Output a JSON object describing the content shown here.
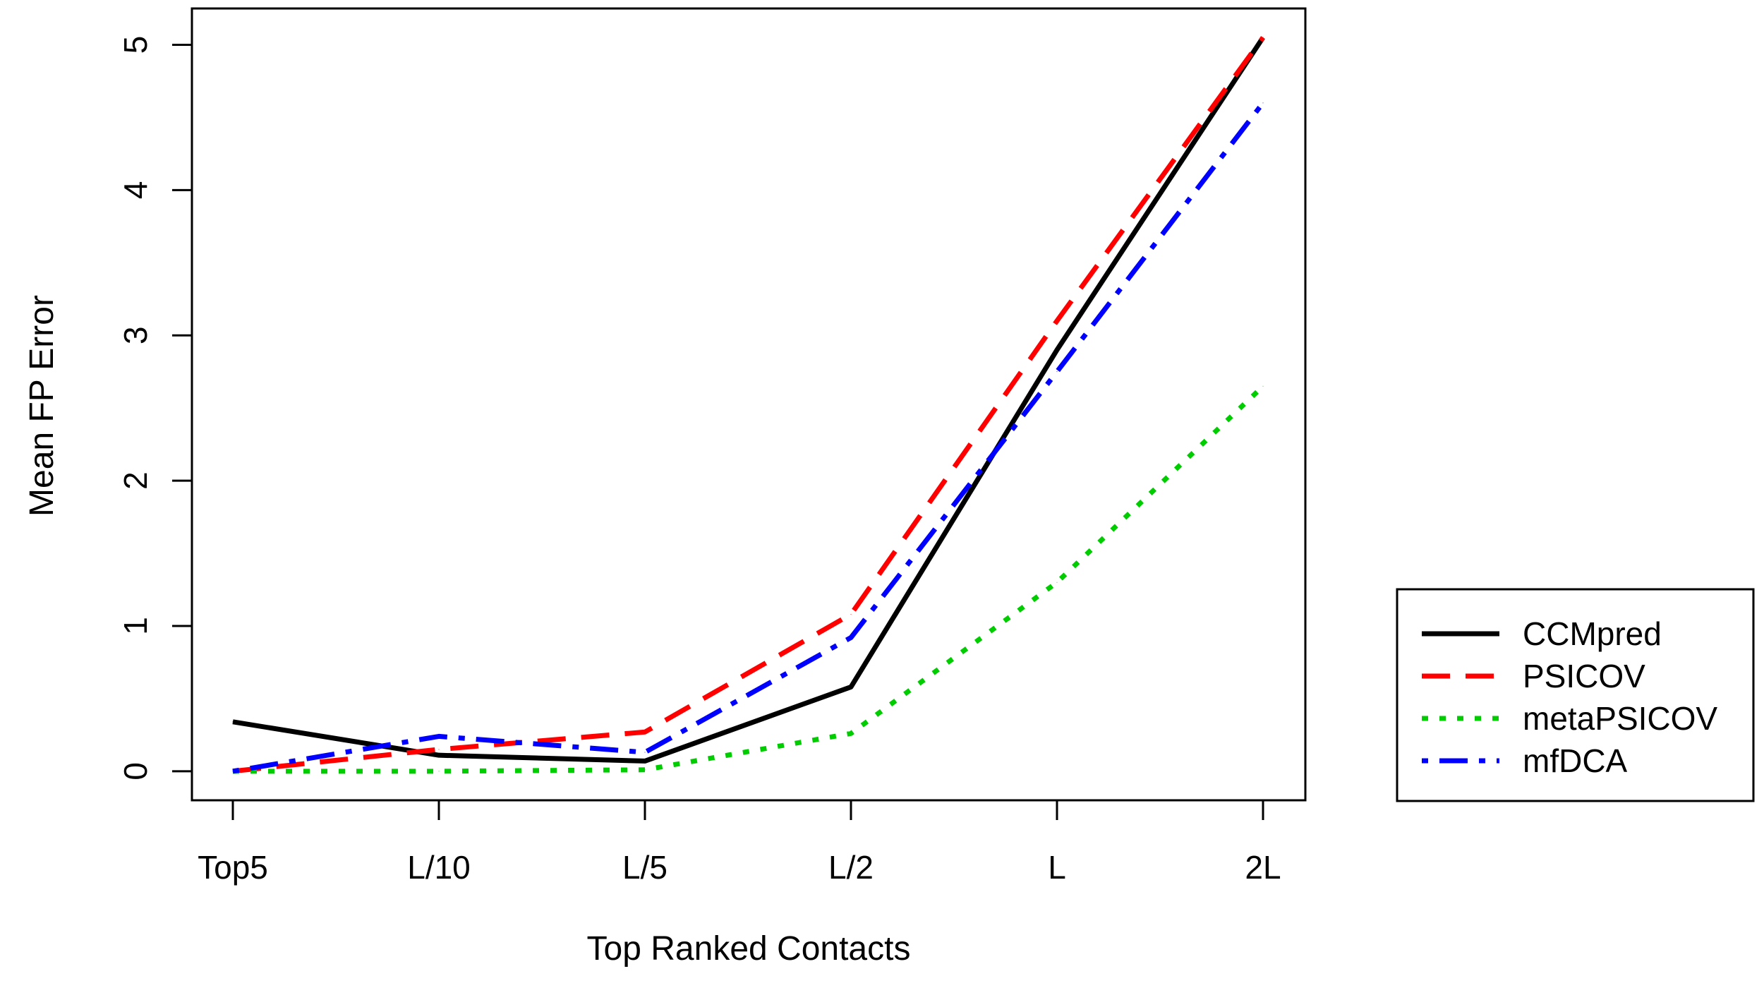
{
  "chart_data": {
    "type": "line",
    "title": "",
    "xlabel": "Top Ranked Contacts",
    "ylabel": "Mean FP Error",
    "categories": [
      "Top5",
      "L/10",
      "L/5",
      "L/2",
      "L",
      "2L"
    ],
    "yticks": [
      "0",
      "1",
      "2",
      "3",
      "4",
      "5"
    ],
    "ylim": [
      -0.2,
      5.25
    ],
    "grid": false,
    "legend_position": "right",
    "series": [
      {
        "name": "CCMpred",
        "color": "#000000",
        "style": "solid",
        "values": [
          0.34,
          0.11,
          0.07,
          0.58,
          2.9,
          5.05
        ]
      },
      {
        "name": "PSICOV",
        "color": "#ff0000",
        "style": "dashed",
        "values": [
          0.0,
          0.15,
          0.27,
          1.08,
          3.1,
          5.05
        ]
      },
      {
        "name": "metaPSICOV",
        "color": "#00cd00",
        "style": "dotted",
        "values": [
          0.0,
          0.0,
          0.01,
          0.26,
          1.3,
          2.65
        ]
      },
      {
        "name": "mfDCA",
        "color": "#0000ff",
        "style": "dotdash",
        "values": [
          0.0,
          0.24,
          0.13,
          0.92,
          2.75,
          4.6
        ]
      }
    ]
  }
}
